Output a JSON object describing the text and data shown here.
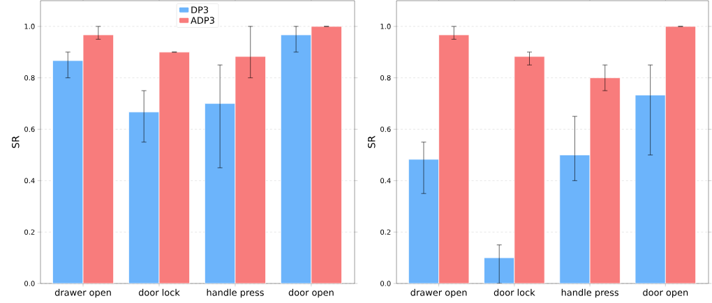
{
  "chart_data": [
    {
      "type": "bar",
      "ylabel": "SR",
      "categories": [
        "drawer open",
        "door lock",
        "handle press",
        "door open"
      ],
      "series": [
        {
          "name": "DP3",
          "color": "#6cb4fb",
          "values": [
            0.867,
            0.667,
            0.7,
            0.967
          ],
          "errors": [
            [
              0.8,
              0.9
            ],
            [
              0.55,
              0.75
            ],
            [
              0.45,
              0.85
            ],
            [
              0.9,
              1.0
            ]
          ]
        },
        {
          "name": "ADP3",
          "color": "#f87c7c",
          "values": [
            0.967,
            0.9,
            0.883,
            1.0
          ],
          "errors": [
            [
              0.95,
              1.0
            ],
            [
              0.9,
              0.9
            ],
            [
              0.8,
              1.0
            ],
            [
              1.0,
              1.0
            ]
          ]
        }
      ],
      "ylim": [
        0,
        1.1
      ],
      "yticks": [
        {
          "value": 0,
          "label": "0.0"
        },
        {
          "value": 0.2,
          "label": "0.2"
        },
        {
          "value": 0.4,
          "label": "0.4"
        },
        {
          "value": 0.6,
          "label": "0.6"
        },
        {
          "value": 0.8,
          "label": "0.8"
        },
        {
          "value": 1.0,
          "label": "1.0"
        }
      ],
      "grid": "y",
      "legend": "top"
    },
    {
      "type": "bar",
      "ylabel": "SR",
      "categories": [
        "drawer open",
        "door lock",
        "handle press",
        "door open"
      ],
      "series": [
        {
          "color": "#6cb4fb",
          "values": [
            0.483,
            0.1,
            0.5,
            0.733
          ],
          "errors": [
            [
              0.35,
              0.55
            ],
            [
              0.0,
              0.15
            ],
            [
              0.4,
              0.65
            ],
            [
              0.5,
              0.85
            ]
          ]
        },
        {
          "color": "#f87c7c",
          "values": [
            0.967,
            0.883,
            0.8,
            1.0
          ],
          "errors": [
            [
              0.95,
              1.0
            ],
            [
              0.85,
              0.9
            ],
            [
              0.75,
              0.85
            ],
            [
              1.0,
              1.0
            ]
          ]
        }
      ],
      "ylim": [
        0,
        1.1
      ],
      "yticks": [
        {
          "value": 0,
          "label": "0.0"
        },
        {
          "value": 0.2,
          "label": "0.2"
        },
        {
          "value": 0.4,
          "label": "0.4"
        },
        {
          "value": 0.6,
          "label": "0.6"
        },
        {
          "value": 0.8,
          "label": "0.8"
        },
        {
          "value": 1.0,
          "label": "1.0"
        }
      ],
      "grid": "y"
    }
  ]
}
